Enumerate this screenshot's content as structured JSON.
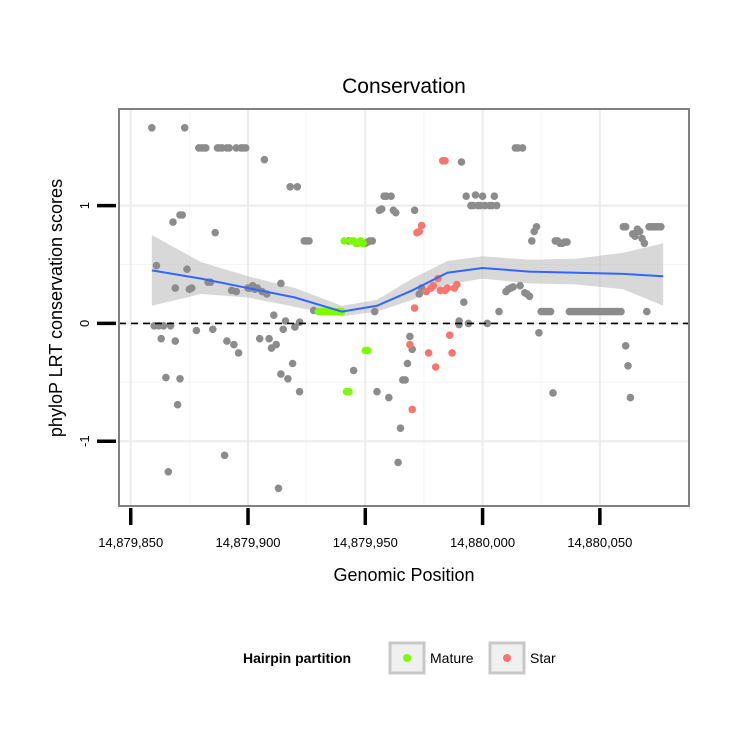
{
  "chart_data": {
    "type": "scatter",
    "title": "Conservation",
    "xlabel": "Genomic Position",
    "ylabel": "phyloP LRT conservation scores",
    "xlim": [
      14879845,
      14880088
    ],
    "ylim": [
      -1.55,
      1.82
    ],
    "x_ticks": [
      {
        "value": 14879850,
        "label": "14,879,850"
      },
      {
        "value": 14879900,
        "label": "14,879,900"
      },
      {
        "value": 14879950,
        "label": "14,879,950"
      },
      {
        "value": 14880000,
        "label": "14,880,000"
      },
      {
        "value": 14880050,
        "label": "14,880,050"
      }
    ],
    "y_ticks": [
      {
        "value": -1,
        "label": "-1"
      },
      {
        "value": 0,
        "label": "0"
      },
      {
        "value": 1,
        "label": "1"
      }
    ],
    "grid": true,
    "reference_line": {
      "y": 0,
      "style": "dashed"
    },
    "legend": {
      "title": "Hairpin partition",
      "placement": "bottom",
      "entries": [
        {
          "label": "Mature",
          "color": "#7CFC00"
        },
        {
          "label": "Star",
          "color": "#F8766D"
        }
      ]
    },
    "colors": {
      "other": "#8C8C8C",
      "mature": "#7CFC00",
      "star": "#F8766D",
      "smooth": "#3366FF",
      "ribbon": "#BEBEBE"
    },
    "series": [
      {
        "name": "Other",
        "color": "#8C8C8C",
        "points": [
          [
            14879859,
            1.66
          ],
          [
            14879860,
            -0.02
          ],
          [
            14879861,
            0.49
          ],
          [
            14879862,
            -0.02
          ],
          [
            14879863,
            -0.13
          ],
          [
            14879864,
            -0.02
          ],
          [
            14879865,
            -0.46
          ],
          [
            14879866,
            -1.26
          ],
          [
            14879867,
            -0.02
          ],
          [
            14879868,
            0.86
          ],
          [
            14879869,
            -0.15
          ],
          [
            14879869,
            0.3
          ],
          [
            14879870,
            -0.69
          ],
          [
            14879871,
            0.92
          ],
          [
            14879871,
            -0.47
          ],
          [
            14879872,
            0.92
          ],
          [
            14879873,
            1.66
          ],
          [
            14879874,
            0.46
          ],
          [
            14879875,
            0.29
          ],
          [
            14879876,
            0.3
          ],
          [
            14879878,
            -0.06
          ],
          [
            14879879,
            1.49
          ],
          [
            14879880,
            1.49
          ],
          [
            14879881,
            1.49
          ],
          [
            14879882,
            1.49
          ],
          [
            14879883,
            0.35
          ],
          [
            14879884,
            0.35
          ],
          [
            14879885,
            -0.05
          ],
          [
            14879886,
            0.77
          ],
          [
            14879887,
            1.49
          ],
          [
            14879888,
            1.49
          ],
          [
            14879889,
            1.49
          ],
          [
            14879890,
            -1.12
          ],
          [
            14879891,
            1.49
          ],
          [
            14879891,
            -0.15
          ],
          [
            14879892,
            1.49
          ],
          [
            14879893,
            0.28
          ],
          [
            14879894,
            -0.18
          ],
          [
            14879895,
            1.49
          ],
          [
            14879895,
            0.27
          ],
          [
            14879896,
            -0.25
          ],
          [
            14879897,
            1.49
          ],
          [
            14879898,
            1.49
          ],
          [
            14879899,
            1.49
          ],
          [
            14879900,
            0.3
          ],
          [
            14879901,
            0.3
          ],
          [
            14879902,
            0.32
          ],
          [
            14879903,
            0.29
          ],
          [
            14879904,
            0.3
          ],
          [
            14879905,
            -0.13
          ],
          [
            14879906,
            0.27
          ],
          [
            14879907,
            1.39
          ],
          [
            14879908,
            0.25
          ],
          [
            14879909,
            -0.13
          ],
          [
            14879910,
            -0.21
          ],
          [
            14879911,
            0.07
          ],
          [
            14879912,
            -0.18
          ],
          [
            14879913,
            -1.4
          ],
          [
            14879914,
            0.34
          ],
          [
            14879914,
            -0.43
          ],
          [
            14879915,
            -0.05
          ],
          [
            14879916,
            0.02
          ],
          [
            14879917,
            -0.47
          ],
          [
            14879918,
            1.16
          ],
          [
            14879919,
            -0.34
          ],
          [
            14879920,
            -0.03
          ],
          [
            14879921,
            1.16
          ],
          [
            14879922,
            0.01
          ],
          [
            14879922,
            -0.58
          ],
          [
            14879924,
            0.7
          ],
          [
            14879925,
            0.7
          ],
          [
            14879926,
            0.7
          ],
          [
            14879928,
            0.11
          ],
          [
            14879943,
            0.7
          ],
          [
            14879945,
            -0.4
          ],
          [
            14879950,
            0.68
          ],
          [
            14879951,
            0.69
          ],
          [
            14879952,
            0.7
          ],
          [
            14879953,
            0.7
          ],
          [
            14879954,
            0.1
          ],
          [
            14879955,
            -0.58
          ],
          [
            14879956,
            0.96
          ],
          [
            14879957,
            0.97
          ],
          [
            14879958,
            1.08
          ],
          [
            14879959,
            1.08
          ],
          [
            14879960,
            -0.63
          ],
          [
            14879961,
            1.08
          ],
          [
            14879962,
            0.96
          ],
          [
            14879963,
            0.94
          ],
          [
            14879964,
            -1.18
          ],
          [
            14879965,
            -0.89
          ],
          [
            14879966,
            -0.48
          ],
          [
            14879967,
            -0.48
          ],
          [
            14879968,
            -0.34
          ],
          [
            14879969,
            -0.11
          ],
          [
            14879970,
            -0.22
          ],
          [
            14879971,
            0.96
          ],
          [
            14879973,
            0.25
          ],
          [
            14879974,
            0.3
          ],
          [
            14879990,
            0.02
          ],
          [
            14879990,
            -0.01
          ],
          [
            14879991,
            1.37
          ],
          [
            14879992,
            0.18
          ],
          [
            14879993,
            1.08
          ],
          [
            14879994,
            0.0
          ],
          [
            14879995,
            1.0
          ],
          [
            14879996,
            1.0
          ],
          [
            14879997,
            1.09
          ],
          [
            14879998,
            1.0
          ],
          [
            14879999,
            1.0
          ],
          [
            14880000,
            1.08
          ],
          [
            14880001,
            1.0
          ],
          [
            14880002,
            0.0
          ],
          [
            14880003,
            1.0
          ],
          [
            14880004,
            1.0
          ],
          [
            14880005,
            1.08
          ],
          [
            14880006,
            1.0
          ],
          [
            14880007,
            0.1
          ],
          [
            14880010,
            0.27
          ],
          [
            14880011,
            0.29
          ],
          [
            14880012,
            0.3
          ],
          [
            14880013,
            0.31
          ],
          [
            14880014,
            1.49
          ],
          [
            14880015,
            1.49
          ],
          [
            14880016,
            0.32
          ],
          [
            14880017,
            1.49
          ],
          [
            14880018,
            0.26
          ],
          [
            14880019,
            0.25
          ],
          [
            14880020,
            0.23
          ],
          [
            14880021,
            0.7
          ],
          [
            14880022,
            0.78
          ],
          [
            14880023,
            0.82
          ],
          [
            14880024,
            -0.08
          ],
          [
            14880025,
            0.1
          ],
          [
            14880026,
            0.1
          ],
          [
            14880027,
            0.1
          ],
          [
            14880028,
            0.1
          ],
          [
            14880029,
            0.1
          ],
          [
            14880030,
            -0.59
          ],
          [
            14880031,
            0.7
          ],
          [
            14880032,
            0.7
          ],
          [
            14880033,
            0.68
          ],
          [
            14880034,
            0.68
          ],
          [
            14880035,
            0.69
          ],
          [
            14880036,
            0.69
          ],
          [
            14880037,
            0.1
          ],
          [
            14880038,
            0.1
          ],
          [
            14880039,
            0.1
          ],
          [
            14880040,
            0.1
          ],
          [
            14880041,
            0.1
          ],
          [
            14880042,
            0.1
          ],
          [
            14880043,
            0.1
          ],
          [
            14880044,
            0.1
          ],
          [
            14880045,
            0.1
          ],
          [
            14880046,
            0.1
          ],
          [
            14880047,
            0.1
          ],
          [
            14880048,
            0.1
          ],
          [
            14880049,
            0.1
          ],
          [
            14880050,
            0.1
          ],
          [
            14880051,
            0.1
          ],
          [
            14880052,
            0.1
          ],
          [
            14880053,
            0.1
          ],
          [
            14880054,
            0.1
          ],
          [
            14880055,
            0.1
          ],
          [
            14880056,
            0.1
          ],
          [
            14880057,
            0.1
          ],
          [
            14880058,
            0.1
          ],
          [
            14880059,
            0.1
          ],
          [
            14880060,
            0.82
          ],
          [
            14880061,
            0.82
          ],
          [
            14880061,
            -0.19
          ],
          [
            14880062,
            -0.36
          ],
          [
            14880063,
            -0.63
          ],
          [
            14880064,
            0.76
          ],
          [
            14880065,
            0.74
          ],
          [
            14880066,
            0.8
          ],
          [
            14880067,
            0.78
          ],
          [
            14880068,
            0.72
          ],
          [
            14880069,
            0.68
          ],
          [
            14880070,
            0.1
          ],
          [
            14880071,
            0.82
          ],
          [
            14880072,
            0.82
          ],
          [
            14880073,
            0.82
          ],
          [
            14880074,
            0.82
          ],
          [
            14880075,
            0.82
          ],
          [
            14880076,
            0.82
          ]
        ]
      },
      {
        "name": "Mature",
        "color": "#7CFC00",
        "points": [
          [
            14879930,
            0.1
          ],
          [
            14879931,
            0.1
          ],
          [
            14879932,
            0.1
          ],
          [
            14879933,
            0.1
          ],
          [
            14879934,
            0.1
          ],
          [
            14879935,
            0.1
          ],
          [
            14879936,
            0.1
          ],
          [
            14879937,
            0.1
          ],
          [
            14879938,
            0.1
          ],
          [
            14879939,
            0.1
          ],
          [
            14879940,
            0.1
          ],
          [
            14879941,
            0.7
          ],
          [
            14879942,
            -0.58
          ],
          [
            14879943,
            -0.58
          ],
          [
            14879944,
            0.7
          ],
          [
            14879945,
            0.7
          ],
          [
            14879946,
            0.68
          ],
          [
            14879947,
            0.68
          ],
          [
            14879948,
            0.7
          ],
          [
            14879949,
            0.68
          ],
          [
            14879950,
            -0.23
          ],
          [
            14879951,
            -0.23
          ]
        ]
      },
      {
        "name": "Star",
        "color": "#F8766D",
        "points": [
          [
            14879969,
            -0.18
          ],
          [
            14879970,
            -0.73
          ],
          [
            14879971,
            0.13
          ],
          [
            14879972,
            0.77
          ],
          [
            14879973,
            0.78
          ],
          [
            14879974,
            0.83
          ],
          [
            14879976,
            0.27
          ],
          [
            14879977,
            -0.25
          ],
          [
            14879978,
            0.3
          ],
          [
            14879979,
            0.32
          ],
          [
            14879980,
            -0.37
          ],
          [
            14879981,
            0.38
          ],
          [
            14879982,
            0.28
          ],
          [
            14879983,
            1.38
          ],
          [
            14879984,
            1.38
          ],
          [
            14879984,
            0.28
          ],
          [
            14879985,
            0.3
          ],
          [
            14879986,
            -0.1
          ],
          [
            14879987,
            -0.25
          ],
          [
            14879988,
            0.3
          ],
          [
            14879989,
            0.33
          ]
        ]
      }
    ],
    "smooth": {
      "x": [
        14879859,
        14879880,
        14879900,
        14879920,
        14879940,
        14879955,
        14879970,
        14879985,
        14880000,
        14880020,
        14880040,
        14880060,
        14880077
      ],
      "y": [
        0.45,
        0.38,
        0.3,
        0.22,
        0.1,
        0.15,
        0.28,
        0.43,
        0.47,
        0.44,
        0.43,
        0.42,
        0.4
      ],
      "ribbon_lower": [
        0.15,
        0.25,
        0.22,
        0.14,
        0.06,
        0.1,
        0.2,
        0.33,
        0.38,
        0.34,
        0.33,
        0.29,
        0.15
      ],
      "ribbon_upper": [
        0.75,
        0.52,
        0.4,
        0.3,
        0.15,
        0.2,
        0.38,
        0.53,
        0.57,
        0.54,
        0.55,
        0.6,
        0.68
      ]
    }
  }
}
